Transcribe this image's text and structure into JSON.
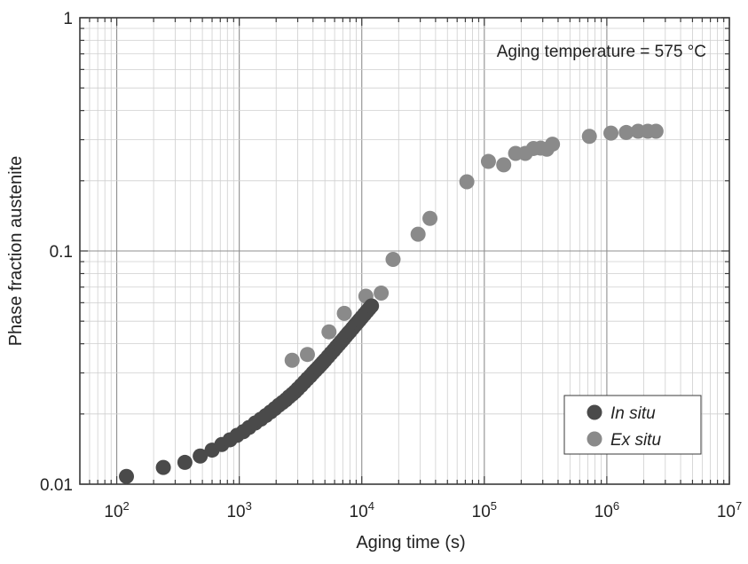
{
  "chart_data": {
    "type": "scatter",
    "xlabel": "Aging time (s)",
    "ylabel": "Phase fraction austenite",
    "xscale": "log",
    "yscale": "log",
    "xlim": [
      50,
      10000000
    ],
    "ylim": [
      0.01,
      1
    ],
    "x_tick_labels": [
      {
        "base": "10",
        "exp": "2",
        "value": 100
      },
      {
        "base": "10",
        "exp": "3",
        "value": 1000
      },
      {
        "base": "10",
        "exp": "4",
        "value": 10000
      },
      {
        "base": "10",
        "exp": "5",
        "value": 100000
      },
      {
        "base": "10",
        "exp": "6",
        "value": 1000000
      },
      {
        "base": "10",
        "exp": "7",
        "value": 10000000
      }
    ],
    "y_tick_labels": [
      {
        "label": "0.01",
        "value": 0.01
      },
      {
        "label": "0.1",
        "value": 0.1
      },
      {
        "label": "1",
        "value": 1
      }
    ],
    "grid": true,
    "annotation": "Aging temperature = 575 °C",
    "legend_position": "bottom-right",
    "series": [
      {
        "name": "In situ",
        "color": "#4a4a4a",
        "x": [
          120,
          240,
          360,
          480,
          600,
          720,
          840,
          960,
          1080,
          1200,
          1350,
          1500,
          1650,
          1800,
          1950,
          2100,
          2250,
          2400,
          2550,
          2700,
          2850,
          3000,
          3200,
          3400,
          3600,
          3800,
          4000,
          4200,
          4400,
          4600,
          4800,
          5000,
          5300,
          5600,
          5900,
          6200,
          6500,
          6800,
          7100,
          7400,
          7700,
          8000,
          8400,
          8800,
          9200,
          9600,
          10000,
          10500,
          11000,
          11500,
          12000
        ],
        "y": [
          0.0108,
          0.0118,
          0.0124,
          0.0132,
          0.014,
          0.0148,
          0.0155,
          0.0162,
          0.0168,
          0.0175,
          0.0183,
          0.019,
          0.0197,
          0.0204,
          0.0211,
          0.0218,
          0.0224,
          0.023,
          0.0237,
          0.0243,
          0.0249,
          0.0256,
          0.0265,
          0.0274,
          0.0283,
          0.0291,
          0.03,
          0.0308,
          0.0316,
          0.0324,
          0.0332,
          0.034,
          0.0352,
          0.0364,
          0.0375,
          0.0387,
          0.0398,
          0.0409,
          0.042,
          0.0431,
          0.0442,
          0.0452,
          0.0466,
          0.048,
          0.0493,
          0.0506,
          0.0519,
          0.0535,
          0.0551,
          0.0566,
          0.0581
        ]
      },
      {
        "name": "Ex situ",
        "color": "#8a8a8a",
        "x": [
          2700,
          3600,
          5400,
          7200,
          10800,
          14400,
          18000,
          28800,
          36000,
          72000,
          108000,
          144000,
          180000,
          216000,
          252000,
          288000,
          324000,
          360000,
          720000,
          1080000,
          1440000,
          1800000,
          2160000,
          2520000
        ],
        "y": [
          0.034,
          0.036,
          0.045,
          0.054,
          0.064,
          0.066,
          0.092,
          0.118,
          0.138,
          0.198,
          0.242,
          0.234,
          0.262,
          0.262,
          0.275,
          0.276,
          0.273,
          0.287,
          0.31,
          0.32,
          0.322,
          0.326,
          0.326,
          0.326
        ]
      }
    ]
  }
}
